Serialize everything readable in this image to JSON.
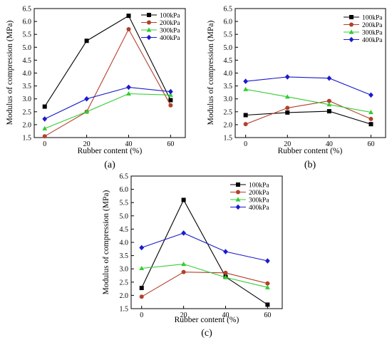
{
  "chart_data": [
    {
      "type": "line",
      "panel_label": "(a)",
      "xlabel": "Rubber content (%)",
      "ylabel": "Modulus of compression (MPa)",
      "x": [
        0,
        20,
        40,
        60
      ],
      "xlim": [
        -5,
        67
      ],
      "ylim": [
        1.5,
        6.5
      ],
      "xticks": [
        "0",
        "20",
        "40",
        "60"
      ],
      "yticks": [
        "1.5",
        "2.0",
        "2.5",
        "3.0",
        "3.5",
        "4.0",
        "4.5",
        "5.0",
        "5.5",
        "6.0",
        "6.5"
      ],
      "legend_position": "top-right",
      "series": [
        {
          "name": "100kPa",
          "color": "#000000",
          "marker": "square",
          "values": [
            2.7,
            5.25,
            6.22,
            2.95
          ]
        },
        {
          "name": "200kPa",
          "color": "#b2402a",
          "marker": "circle",
          "values": [
            1.55,
            2.5,
            5.7,
            2.75
          ]
        },
        {
          "name": "300kPa",
          "color": "#33cc33",
          "marker": "triangle",
          "values": [
            1.85,
            2.5,
            3.2,
            3.15
          ]
        },
        {
          "name": "400kPa",
          "color": "#1a1acc",
          "marker": "diamond",
          "values": [
            2.22,
            3.0,
            3.45,
            3.28
          ]
        }
      ]
    },
    {
      "type": "line",
      "panel_label": "(b)",
      "xlabel": "Rubber content (%)",
      "ylabel": "Modulus of compression (MPa)",
      "x": [
        0,
        20,
        40,
        60
      ],
      "xlim": [
        -5,
        67
      ],
      "ylim": [
        1.5,
        6.5
      ],
      "xticks": [
        "0",
        "20",
        "40",
        "60"
      ],
      "yticks": [
        "1.5",
        "2.0",
        "2.5",
        "3.0",
        "3.5",
        "4.0",
        "4.5",
        "5.0",
        "5.5",
        "6.0",
        "6.5"
      ],
      "legend_position": "top-right",
      "series": [
        {
          "name": "100kPa",
          "color": "#000000",
          "marker": "square",
          "values": [
            2.37,
            2.47,
            2.52,
            2.02
          ]
        },
        {
          "name": "200kPa",
          "color": "#b2402a",
          "marker": "circle",
          "values": [
            2.02,
            2.65,
            2.92,
            2.22
          ]
        },
        {
          "name": "300kPa",
          "color": "#33cc33",
          "marker": "triangle",
          "values": [
            3.37,
            3.08,
            2.78,
            2.48
          ]
        },
        {
          "name": "400kPa",
          "color": "#1a1acc",
          "marker": "diamond",
          "values": [
            3.68,
            3.85,
            3.8,
            3.15
          ]
        }
      ]
    },
    {
      "type": "line",
      "panel_label": "(c)",
      "xlabel": "Rubber content (%)",
      "ylabel": "Modulus of compression (MPa)",
      "x": [
        0,
        20,
        40,
        60
      ],
      "xlim": [
        -5,
        67
      ],
      "ylim": [
        1.5,
        6.5
      ],
      "xticks": [
        "0",
        "20",
        "40",
        "60"
      ],
      "yticks": [
        "1.5",
        "2.0",
        "2.5",
        "3.0",
        "3.5",
        "4.0",
        "4.5",
        "5.0",
        "5.5",
        "6.0",
        "6.5"
      ],
      "legend_position": "top-right",
      "series": [
        {
          "name": "100kPa",
          "color": "#000000",
          "marker": "square",
          "values": [
            2.28,
            5.6,
            2.7,
            1.65
          ]
        },
        {
          "name": "200kPa",
          "color": "#b2402a",
          "marker": "circle",
          "values": [
            1.95,
            2.88,
            2.85,
            2.45
          ]
        },
        {
          "name": "300kPa",
          "color": "#33cc33",
          "marker": "triangle",
          "values": [
            3.02,
            3.18,
            2.68,
            2.3
          ]
        },
        {
          "name": "400kPa",
          "color": "#1a1acc",
          "marker": "diamond",
          "values": [
            3.8,
            4.35,
            3.65,
            3.3
          ]
        }
      ]
    }
  ]
}
